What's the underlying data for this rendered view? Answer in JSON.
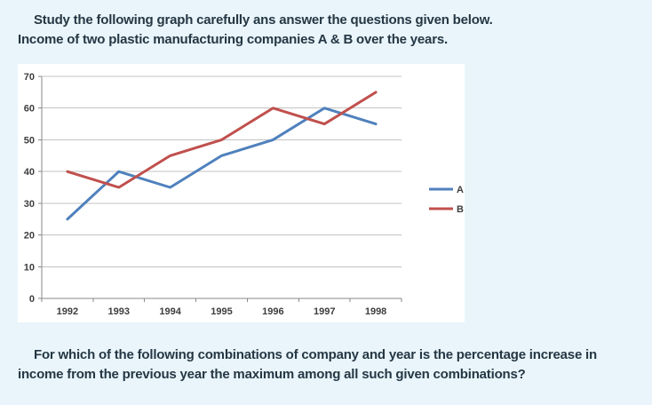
{
  "page": {
    "intro_line1": "Study the following graph carefully ans answer the questions given below.",
    "intro_line2": "Income of two plastic manufacturing companies A & B over the years.",
    "question_line1": "For which of the following combinations of company and year is the percentage increase in",
    "question_line2": "income from the previous year the maximum among all such given combinations?"
  },
  "chart_data": {
    "type": "line",
    "title": "Income of two plastic manufacturing companies A & B over the years",
    "categories": [
      "1992",
      "1993",
      "1994",
      "1995",
      "1996",
      "1997",
      "1998"
    ],
    "series": [
      {
        "name": "A",
        "color": "#4f81bd",
        "values": [
          25,
          40,
          35,
          45,
          50,
          60,
          55
        ]
      },
      {
        "name": "B",
        "color": "#c0504d",
        "values": [
          40,
          35,
          45,
          50,
          60,
          55,
          65
        ]
      }
    ],
    "xlabel": "",
    "ylabel": "",
    "ylim": [
      0,
      70
    ],
    "ytick_step": 10,
    "grid": true,
    "legend_position": "right"
  },
  "colors": {
    "page_background": "#e9f5fb",
    "chart_background": "#ffffff",
    "body_text": "#253744",
    "axis_line": "#8a8a8a",
    "gridline": "#c3c3c3",
    "tick_label": "#3d3d3d"
  }
}
